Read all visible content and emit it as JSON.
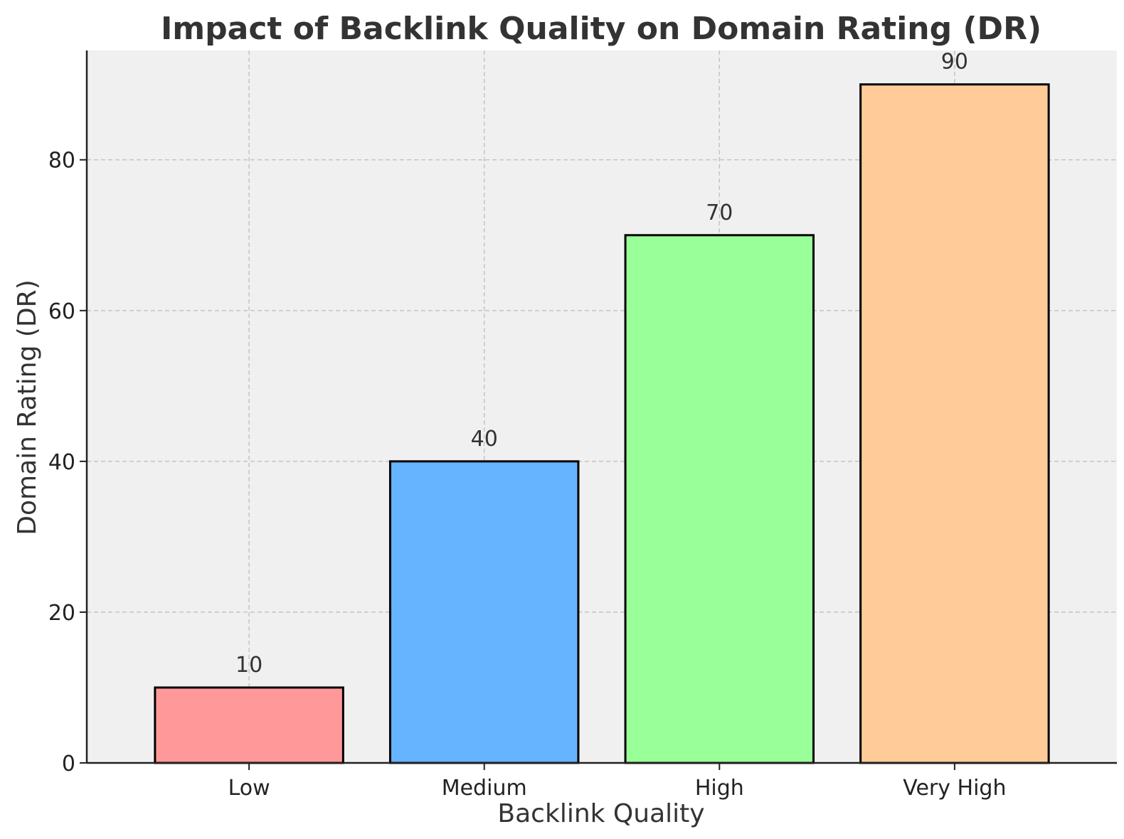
{
  "chart_data": {
    "type": "bar",
    "title": "Impact of Backlink Quality on Domain Rating (DR)",
    "xlabel": "Backlink Quality",
    "ylabel": "Domain Rating (DR)",
    "categories": [
      "Low",
      "Medium",
      "High",
      "Very High"
    ],
    "values": [
      10,
      40,
      70,
      90
    ],
    "data_labels": [
      "10",
      "40",
      "70",
      "90"
    ],
    "bar_colors": [
      "#ff9999",
      "#66b3ff",
      "#99ff99",
      "#ffcc99"
    ],
    "bar_edge_color": "#000000",
    "background_color": "#f0f0f0",
    "ylim": [
      0,
      94.5
    ],
    "yticks": [
      0,
      20,
      40,
      60,
      80
    ],
    "ytick_labels": [
      "0",
      "20",
      "40",
      "60",
      "80"
    ],
    "grid": true,
    "legend": "none"
  }
}
